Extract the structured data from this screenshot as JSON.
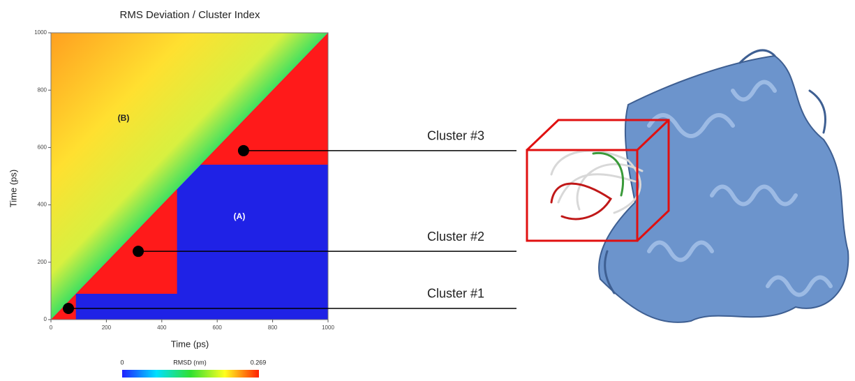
{
  "chart_data": {
    "type": "rmsd-matrix",
    "title": "RMS Deviation / Cluster Index",
    "x_label": "Time (ps)",
    "y_label": "Time (ps)",
    "xlim": [
      0,
      1000
    ],
    "ylim": [
      0,
      1000
    ],
    "xticks": [
      0,
      200,
      400,
      600,
      800,
      1000
    ],
    "yticks": [
      0,
      200,
      400,
      600,
      800,
      1000
    ],
    "cluster_color": "#ff1a1a",
    "background_color": "#1f22e6",
    "colorbar": {
      "label": "RMSD (nm)",
      "min": 0,
      "max": 0.269
    },
    "regions": [
      "(A)",
      "(B)"
    ],
    "clusters": [
      {
        "name": "Cluster #1",
        "start": 0,
        "end": 90,
        "x": 63,
        "y": 39
      },
      {
        "name": "Cluster #2",
        "start": 90,
        "end": 455,
        "x": 315,
        "y": 238
      },
      {
        "name": "Cluster #3",
        "start": 540,
        "end": 1000,
        "x": 695,
        "y": 589
      }
    ]
  }
}
